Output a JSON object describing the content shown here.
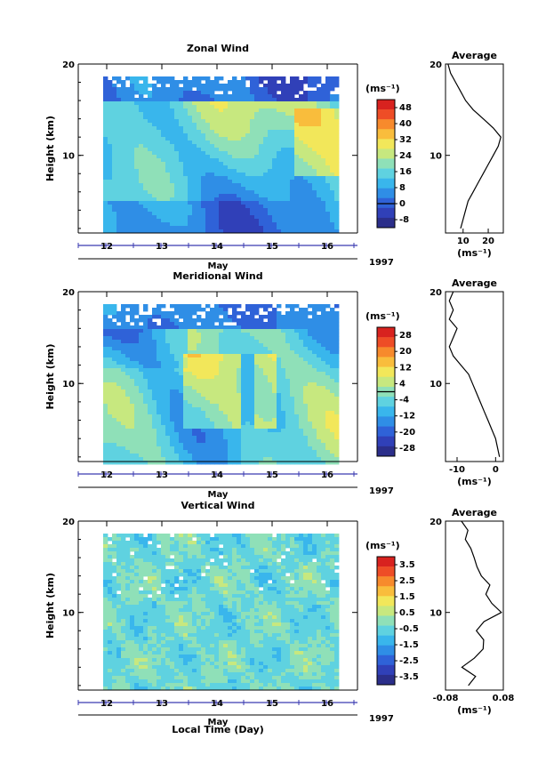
{
  "figure": {
    "xlabel": "Local Time (Day)",
    "month_label": "May",
    "year_label": "1997",
    "day_ticks": [
      "12",
      "13",
      "14",
      "15",
      "16"
    ],
    "height_ticks": [
      "20",
      "10"
    ],
    "ylabel": "Height (km)",
    "avg_title": "Average",
    "unit_label": "(ms⁻¹)"
  },
  "chart_data": [
    {
      "type": "heatmap",
      "title": "Zonal Wind",
      "ylabel": "Height (km)",
      "xlabel": "May",
      "x_range_days": [
        11.55,
        16.45
      ],
      "ylim_km": [
        1.5,
        20
      ],
      "colorbar_unit": "(ms⁻¹)",
      "colorbar_ticks": [
        "48",
        "40",
        "32",
        "24",
        "16",
        "8",
        "0",
        "-8"
      ],
      "colorbar_range": [
        -12,
        52
      ],
      "profile": {
        "title": "Average",
        "xlabel": "(ms⁻¹)",
        "xticks": [
          "10",
          "20"
        ],
        "xlim": [
          3,
          26
        ],
        "height_km": [
          2,
          3,
          4,
          5,
          6,
          7,
          8,
          9,
          10,
          11,
          12,
          13,
          14,
          15,
          16,
          17,
          18,
          19,
          20
        ],
        "value": [
          9,
          10,
          11,
          12,
          14,
          16,
          18,
          20,
          22,
          24,
          25,
          22,
          18,
          14,
          11,
          9,
          7,
          5,
          4
        ]
      }
    },
    {
      "type": "heatmap",
      "title": "Meridional Wind",
      "ylabel": "Height (km)",
      "xlabel": "May",
      "x_range_days": [
        11.55,
        16.45
      ],
      "ylim_km": [
        1.5,
        20
      ],
      "colorbar_unit": "(ms⁻¹)",
      "colorbar_ticks": [
        "28",
        "20",
        "12",
        "4",
        "-4",
        "-12",
        "-20",
        "-28"
      ],
      "colorbar_range": [
        -32,
        32
      ],
      "profile": {
        "title": "Average",
        "xlabel": "(ms⁻¹)",
        "xticks": [
          "-10",
          "0"
        ],
        "xlim": [
          -13,
          2
        ],
        "height_km": [
          2,
          3,
          4,
          5,
          6,
          7,
          8,
          9,
          10,
          11,
          12,
          13,
          14,
          15,
          16,
          17,
          18,
          19,
          20
        ],
        "value": [
          1,
          0.5,
          0,
          -1,
          -2,
          -3,
          -4,
          -5,
          -6,
          -7,
          -9,
          -11,
          -12,
          -11,
          -10,
          -12,
          -11,
          -12,
          -11
        ]
      }
    },
    {
      "type": "heatmap",
      "title": "Vertical Wind",
      "ylabel": "Height (km)",
      "xlabel": "May",
      "x_range_days": [
        11.55,
        16.45
      ],
      "ylim_km": [
        1.5,
        20
      ],
      "colorbar_unit": "(ms⁻¹)",
      "colorbar_ticks": [
        "3.5",
        "2.5",
        "1.5",
        "0.5",
        "-0.5",
        "-1.5",
        "-2.5",
        "-3.5"
      ],
      "colorbar_range": [
        -4,
        4
      ],
      "profile": {
        "title": "Average",
        "xlabel": "(ms⁻¹)",
        "xticks": [
          "-0.08",
          "0.08"
        ],
        "xlim": [
          -0.08,
          0.08
        ],
        "height_km": [
          2,
          3,
          4,
          5,
          6,
          7,
          8,
          9,
          10,
          11,
          12,
          13,
          14,
          15,
          16,
          17,
          18,
          19,
          20
        ],
        "value": [
          -0.02,
          0.0,
          -0.03,
          0.0,
          0.02,
          0.03,
          0.01,
          0.03,
          0.07,
          0.05,
          0.03,
          0.04,
          0.02,
          0.01,
          0.0,
          -0.01,
          -0.03,
          -0.02,
          -0.04
        ]
      }
    }
  ],
  "colors": {
    "colormap": [
      "#2b2e8a",
      "#3040b8",
      "#2f62d8",
      "#2f8ee6",
      "#39b6ec",
      "#5fd2e0",
      "#8fe0b8",
      "#c7e87f",
      "#f2e75a",
      "#f9bd3c",
      "#f78a2c",
      "#ee4d26",
      "#d8221f"
    ]
  }
}
